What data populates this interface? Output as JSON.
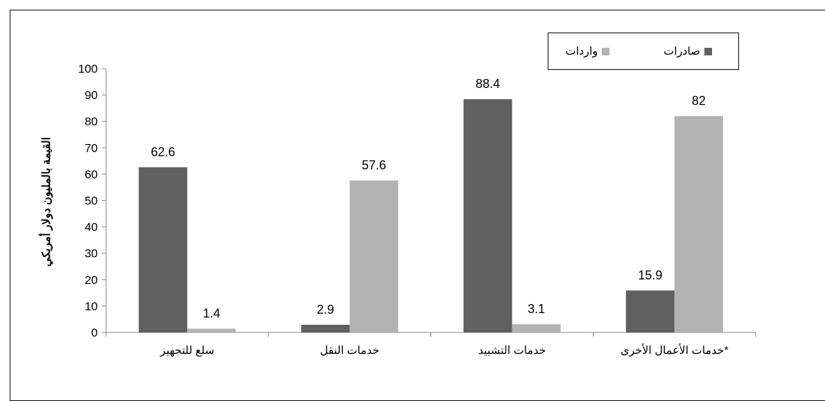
{
  "chart_data": {
    "type": "bar",
    "title": "",
    "xlabel": "",
    "ylabel": "القيمة بالمليون دولار أمريكي",
    "ylim": [
      0,
      100
    ],
    "yticks": [
      0,
      10,
      20,
      30,
      40,
      50,
      60,
      70,
      80,
      90,
      100
    ],
    "categories": [
      "سلع للتجهيز",
      "خدمات النقل",
      "خدمات التشييد",
      "خدمات الأعمال الأخرى*"
    ],
    "series": [
      {
        "name": "صادرات",
        "color": "#606060",
        "values": [
          62.6,
          2.9,
          88.4,
          15.9
        ],
        "labels": [
          "62.6",
          "2.9",
          "88.4",
          "15.9"
        ]
      },
      {
        "name": "واردات",
        "color": "#b3b3b3",
        "values": [
          1.4,
          57.6,
          3.1,
          82
        ],
        "labels": [
          "1.4",
          "57.6",
          "3.1",
          "82"
        ]
      }
    ],
    "legend_position": "top-right",
    "grid": false
  }
}
